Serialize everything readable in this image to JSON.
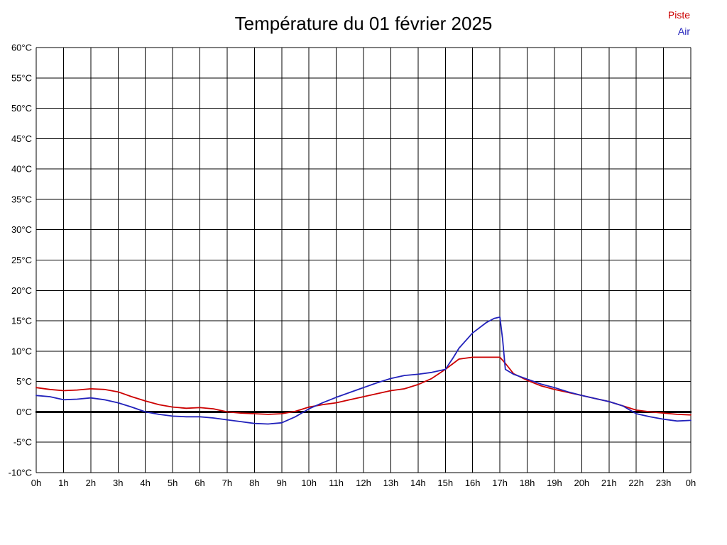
{
  "title": "Température du 01 février 2025",
  "legend": [
    {
      "label": "Piste",
      "color": "#cc0000"
    },
    {
      "label": "Air",
      "color": "#2222bb"
    }
  ],
  "chart_data": {
    "type": "line",
    "title": "Température du 01 février 2025",
    "xlabel": "",
    "ylabel": "",
    "xlim": [
      0,
      24
    ],
    "ylim": [
      -10,
      60
    ],
    "ytick_step": 5,
    "grid": true,
    "zero_line": true,
    "zero_line_color": "#000000",
    "grid_color": "#000000",
    "legend_position": "top-right",
    "xtick_labels": [
      "0h",
      "1h",
      "2h",
      "3h",
      "4h",
      "5h",
      "6h",
      "7h",
      "8h",
      "9h",
      "10h",
      "11h",
      "12h",
      "13h",
      "14h",
      "15h",
      "16h",
      "17h",
      "18h",
      "19h",
      "20h",
      "21h",
      "22h",
      "23h",
      "0h"
    ],
    "ytick_labels": [
      "60°C",
      "55°C",
      "50°C",
      "45°C",
      "40°C",
      "35°C",
      "30°C",
      "25°C",
      "20°C",
      "15°C",
      "10°C",
      "5°C",
      "0°C",
      "-5°C",
      "-10°C"
    ],
    "series": [
      {
        "name": "Piste",
        "color": "#cc0000",
        "points": [
          [
            0,
            4.0
          ],
          [
            0.5,
            3.7
          ],
          [
            1,
            3.5
          ],
          [
            1.5,
            3.6
          ],
          [
            2,
            3.8
          ],
          [
            2.5,
            3.7
          ],
          [
            3,
            3.3
          ],
          [
            3.5,
            2.5
          ],
          [
            4,
            1.8
          ],
          [
            4.5,
            1.2
          ],
          [
            5,
            0.8
          ],
          [
            5.5,
            0.6
          ],
          [
            6,
            0.7
          ],
          [
            6.5,
            0.5
          ],
          [
            7,
            0.0
          ],
          [
            7.5,
            -0.2
          ],
          [
            8,
            -0.3
          ],
          [
            8.5,
            -0.4
          ],
          [
            9,
            -0.3
          ],
          [
            9.5,
            0.1
          ],
          [
            10,
            0.8
          ],
          [
            10.5,
            1.2
          ],
          [
            11,
            1.5
          ],
          [
            11.5,
            2.0
          ],
          [
            12,
            2.5
          ],
          [
            12.5,
            3.0
          ],
          [
            13,
            3.5
          ],
          [
            13.5,
            3.8
          ],
          [
            14,
            4.5
          ],
          [
            14.5,
            5.5
          ],
          [
            15,
            7.0
          ],
          [
            15.5,
            8.7
          ],
          [
            16,
            9.0
          ],
          [
            16.5,
            9.0
          ],
          [
            17,
            9.0
          ],
          [
            17.2,
            8.0
          ],
          [
            17.5,
            6.3
          ],
          [
            18,
            5.2
          ],
          [
            18.5,
            4.3
          ],
          [
            19,
            3.7
          ],
          [
            19.5,
            3.2
          ],
          [
            20,
            2.7
          ],
          [
            20.5,
            2.2
          ],
          [
            21,
            1.7
          ],
          [
            21.5,
            1.0
          ],
          [
            22,
            0.3
          ],
          [
            22.5,
            0.0
          ],
          [
            23,
            -0.2
          ],
          [
            23.5,
            -0.4
          ],
          [
            24,
            -0.5
          ]
        ]
      },
      {
        "name": "Air",
        "color": "#2222bb",
        "points": [
          [
            0,
            2.7
          ],
          [
            0.5,
            2.5
          ],
          [
            1,
            2.0
          ],
          [
            1.5,
            2.1
          ],
          [
            2,
            2.3
          ],
          [
            2.5,
            2.0
          ],
          [
            3,
            1.5
          ],
          [
            3.5,
            0.8
          ],
          [
            4,
            0.0
          ],
          [
            4.5,
            -0.4
          ],
          [
            5,
            -0.7
          ],
          [
            5.5,
            -0.8
          ],
          [
            6,
            -0.8
          ],
          [
            6.5,
            -1.0
          ],
          [
            7,
            -1.3
          ],
          [
            7.5,
            -1.6
          ],
          [
            8,
            -1.9
          ],
          [
            8.5,
            -2.0
          ],
          [
            9,
            -1.8
          ],
          [
            9.5,
            -0.8
          ],
          [
            10,
            0.5
          ],
          [
            10.5,
            1.5
          ],
          [
            11,
            2.4
          ],
          [
            11.5,
            3.2
          ],
          [
            12,
            4.0
          ],
          [
            12.5,
            4.8
          ],
          [
            13,
            5.5
          ],
          [
            13.5,
            6.0
          ],
          [
            14,
            6.2
          ],
          [
            14.5,
            6.5
          ],
          [
            15,
            7.0
          ],
          [
            15.3,
            9.0
          ],
          [
            15.5,
            10.5
          ],
          [
            16,
            13.0
          ],
          [
            16.5,
            14.7
          ],
          [
            16.8,
            15.4
          ],
          [
            17,
            15.6
          ],
          [
            17.1,
            12.0
          ],
          [
            17.2,
            7.0
          ],
          [
            17.5,
            6.2
          ],
          [
            18,
            5.4
          ],
          [
            18.5,
            4.6
          ],
          [
            19,
            4.0
          ],
          [
            19.5,
            3.3
          ],
          [
            20,
            2.7
          ],
          [
            20.5,
            2.2
          ],
          [
            21,
            1.7
          ],
          [
            21.5,
            1.0
          ],
          [
            22,
            -0.3
          ],
          [
            22.5,
            -0.8
          ],
          [
            23,
            -1.2
          ],
          [
            23.5,
            -1.5
          ],
          [
            24,
            -1.4
          ]
        ]
      }
    ]
  }
}
